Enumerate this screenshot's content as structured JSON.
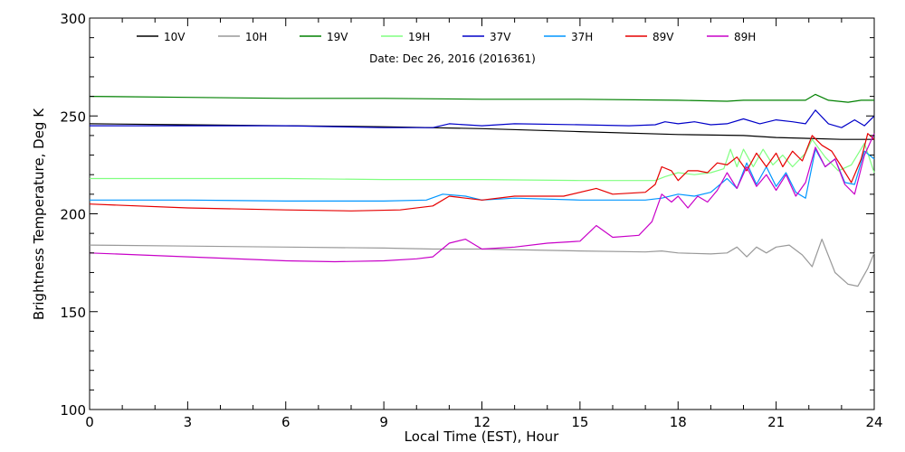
{
  "chart_data": {
    "type": "line",
    "title": "",
    "subtitle": "Date: Dec 26, 2016 (2016361)",
    "xlabel": "Local Time (EST), Hour",
    "ylabel": "Brightness Temperature, Deg K",
    "xlim": [
      0,
      24
    ],
    "ylim": [
      100,
      300
    ],
    "xticks": [
      0,
      3,
      6,
      9,
      12,
      15,
      18,
      21,
      24
    ],
    "yticks": [
      100,
      150,
      200,
      250,
      300
    ],
    "grid": false,
    "legend_position": "top",
    "series": [
      {
        "name": "10V",
        "color": "#000000",
        "points": [
          [
            0,
            246
          ],
          [
            3,
            245.5
          ],
          [
            6,
            245
          ],
          [
            9,
            244.5
          ],
          [
            12,
            243.5
          ],
          [
            15,
            242
          ],
          [
            18,
            240.5
          ],
          [
            20,
            240
          ],
          [
            21,
            239
          ],
          [
            22,
            238.5
          ],
          [
            23,
            238
          ],
          [
            24,
            238
          ]
        ]
      },
      {
        "name": "10H",
        "color": "#999999",
        "points": [
          [
            0,
            184
          ],
          [
            3,
            183.5
          ],
          [
            6,
            183
          ],
          [
            9,
            182.5
          ],
          [
            10.5,
            182
          ],
          [
            12,
            182
          ],
          [
            15,
            181
          ],
          [
            17,
            180.5
          ],
          [
            17.5,
            181
          ],
          [
            18,
            180
          ],
          [
            19,
            179.5
          ],
          [
            19.5,
            180
          ],
          [
            19.8,
            183
          ],
          [
            20.1,
            178
          ],
          [
            20.4,
            183
          ],
          [
            20.7,
            180
          ],
          [
            21,
            183
          ],
          [
            21.4,
            184
          ],
          [
            21.8,
            179
          ],
          [
            22.1,
            173
          ],
          [
            22.4,
            187
          ],
          [
            22.8,
            170
          ],
          [
            23.2,
            164
          ],
          [
            23.5,
            163
          ],
          [
            23.8,
            172
          ],
          [
            24,
            180
          ]
        ]
      },
      {
        "name": "19V",
        "color": "#008000",
        "points": [
          [
            0,
            260
          ],
          [
            3,
            259.5
          ],
          [
            6,
            259
          ],
          [
            9,
            259
          ],
          [
            12,
            258.5
          ],
          [
            15,
            258.5
          ],
          [
            18,
            258
          ],
          [
            19.5,
            257.5
          ],
          [
            20,
            258
          ],
          [
            21,
            258
          ],
          [
            21.9,
            258
          ],
          [
            22.2,
            261
          ],
          [
            22.6,
            258
          ],
          [
            23.2,
            257
          ],
          [
            23.6,
            258
          ],
          [
            24,
            258
          ]
        ]
      },
      {
        "name": "19H",
        "color": "#80ff80",
        "points": [
          [
            0,
            218
          ],
          [
            3,
            218
          ],
          [
            6,
            218
          ],
          [
            9,
            217.5
          ],
          [
            12,
            217.5
          ],
          [
            15,
            217
          ],
          [
            16.5,
            217
          ],
          [
            17.3,
            217
          ],
          [
            17.6,
            219
          ],
          [
            18,
            221
          ],
          [
            18.5,
            220
          ],
          [
            19,
            221
          ],
          [
            19.4,
            223
          ],
          [
            19.6,
            233
          ],
          [
            19.8,
            224
          ],
          [
            20,
            233
          ],
          [
            20.3,
            224
          ],
          [
            20.6,
            233
          ],
          [
            20.9,
            225
          ],
          [
            21.2,
            230
          ],
          [
            21.5,
            224
          ],
          [
            21.9,
            231
          ],
          [
            22.1,
            238
          ],
          [
            22.5,
            229
          ],
          [
            22.9,
            222
          ],
          [
            23.3,
            225
          ],
          [
            23.7,
            236
          ],
          [
            24,
            221
          ]
        ]
      },
      {
        "name": "37V",
        "color": "#0000c8",
        "points": [
          [
            0,
            245
          ],
          [
            3,
            245
          ],
          [
            6,
            245
          ],
          [
            9,
            244
          ],
          [
            10.5,
            244
          ],
          [
            11,
            246
          ],
          [
            12,
            245
          ],
          [
            13,
            246
          ],
          [
            15,
            245.5
          ],
          [
            16.5,
            245
          ],
          [
            17.3,
            245.5
          ],
          [
            17.6,
            247
          ],
          [
            18,
            246
          ],
          [
            18.5,
            247
          ],
          [
            19,
            245.5
          ],
          [
            19.5,
            246
          ],
          [
            20,
            248.5
          ],
          [
            20.5,
            246
          ],
          [
            21,
            248
          ],
          [
            21.5,
            247
          ],
          [
            21.9,
            246
          ],
          [
            22.2,
            253
          ],
          [
            22.6,
            246
          ],
          [
            23,
            244
          ],
          [
            23.4,
            248
          ],
          [
            23.7,
            245
          ],
          [
            24,
            250
          ]
        ]
      },
      {
        "name": "37H",
        "color": "#0096ff",
        "points": [
          [
            0,
            207
          ],
          [
            3,
            207
          ],
          [
            6,
            206.5
          ],
          [
            9,
            206.5
          ],
          [
            10.3,
            207
          ],
          [
            10.8,
            210
          ],
          [
            11.5,
            209
          ],
          [
            12,
            207
          ],
          [
            13,
            208
          ],
          [
            15,
            207
          ],
          [
            17,
            207
          ],
          [
            17.5,
            208
          ],
          [
            18,
            210
          ],
          [
            18.5,
            209
          ],
          [
            19,
            211
          ],
          [
            19.5,
            218
          ],
          [
            19.8,
            213
          ],
          [
            20.1,
            226
          ],
          [
            20.4,
            215
          ],
          [
            20.7,
            224
          ],
          [
            21,
            214
          ],
          [
            21.3,
            221
          ],
          [
            21.6,
            211
          ],
          [
            21.9,
            208
          ],
          [
            22.2,
            233
          ],
          [
            22.5,
            224
          ],
          [
            22.8,
            228
          ],
          [
            23.1,
            216
          ],
          [
            23.4,
            215
          ],
          [
            23.7,
            232
          ],
          [
            24,
            228
          ]
        ]
      },
      {
        "name": "89V",
        "color": "#e60000",
        "points": [
          [
            0,
            205
          ],
          [
            3,
            203
          ],
          [
            6,
            202
          ],
          [
            8,
            201.5
          ],
          [
            9.5,
            202
          ],
          [
            10.5,
            204
          ],
          [
            11,
            209
          ],
          [
            11.5,
            208
          ],
          [
            12,
            207
          ],
          [
            13,
            209
          ],
          [
            14.5,
            209
          ],
          [
            15.5,
            213
          ],
          [
            16,
            210
          ],
          [
            17,
            211
          ],
          [
            17.3,
            215
          ],
          [
            17.5,
            224
          ],
          [
            17.8,
            222
          ],
          [
            18,
            217
          ],
          [
            18.3,
            222
          ],
          [
            18.6,
            222
          ],
          [
            18.9,
            221
          ],
          [
            19.2,
            226
          ],
          [
            19.5,
            225
          ],
          [
            19.8,
            229
          ],
          [
            20.1,
            222
          ],
          [
            20.4,
            231
          ],
          [
            20.7,
            224
          ],
          [
            21,
            231
          ],
          [
            21.2,
            224
          ],
          [
            21.5,
            232
          ],
          [
            21.8,
            227
          ],
          [
            22.1,
            240
          ],
          [
            22.4,
            235
          ],
          [
            22.7,
            232
          ],
          [
            23,
            224
          ],
          [
            23.3,
            216
          ],
          [
            23.6,
            228
          ],
          [
            23.8,
            241
          ],
          [
            24,
            238
          ]
        ]
      },
      {
        "name": "89H",
        "color": "#c800c8",
        "points": [
          [
            0,
            180
          ],
          [
            3,
            178
          ],
          [
            6,
            176
          ],
          [
            7.5,
            175.5
          ],
          [
            9,
            176
          ],
          [
            10,
            177
          ],
          [
            10.5,
            178
          ],
          [
            11,
            185
          ],
          [
            11.5,
            187
          ],
          [
            12,
            182
          ],
          [
            13,
            183
          ],
          [
            14,
            185
          ],
          [
            15,
            186
          ],
          [
            15.5,
            194
          ],
          [
            16,
            188
          ],
          [
            16.8,
            189
          ],
          [
            17.2,
            196
          ],
          [
            17.5,
            210
          ],
          [
            17.8,
            206
          ],
          [
            18,
            209
          ],
          [
            18.3,
            203
          ],
          [
            18.6,
            209
          ],
          [
            18.9,
            206
          ],
          [
            19.2,
            212
          ],
          [
            19.5,
            221
          ],
          [
            19.8,
            213
          ],
          [
            20.1,
            224
          ],
          [
            20.4,
            214
          ],
          [
            20.7,
            220
          ],
          [
            21,
            212
          ],
          [
            21.3,
            220
          ],
          [
            21.6,
            209
          ],
          [
            21.9,
            216
          ],
          [
            22.2,
            234
          ],
          [
            22.5,
            224
          ],
          [
            22.8,
            228
          ],
          [
            23.1,
            215
          ],
          [
            23.4,
            210
          ],
          [
            23.7,
            230
          ],
          [
            24,
            241
          ]
        ]
      }
    ]
  }
}
